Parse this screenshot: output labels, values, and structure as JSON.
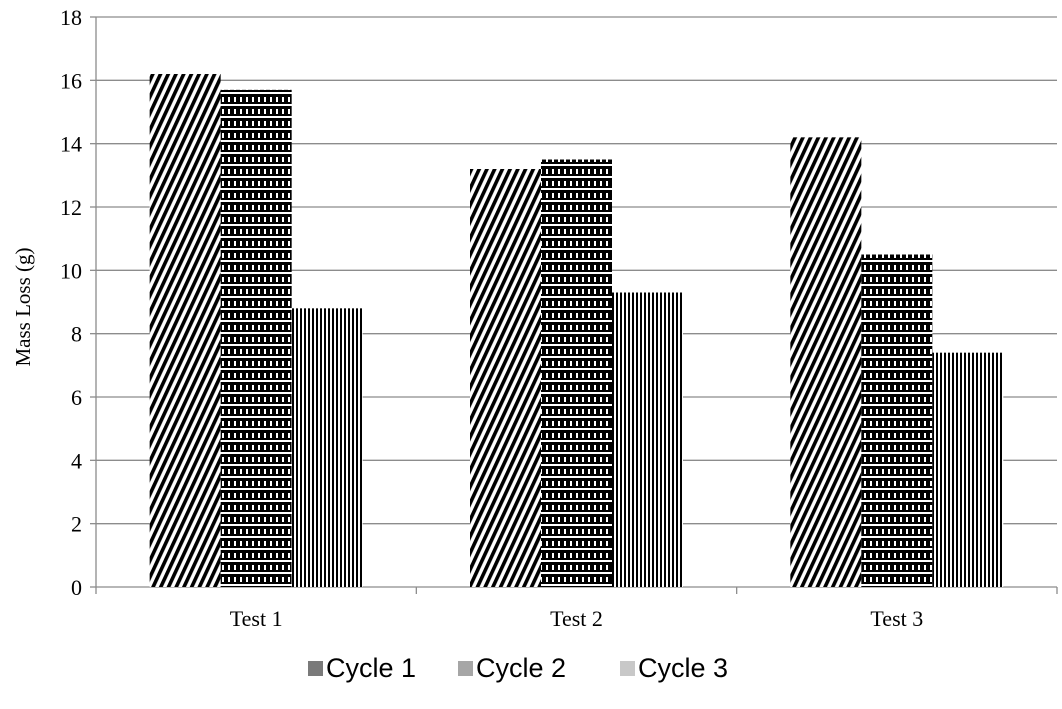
{
  "chart_data": {
    "type": "bar",
    "title": "",
    "xlabel": "",
    "ylabel": "Mass Loss (g)",
    "categories": [
      "Test 1",
      "Test 2",
      "Test 3"
    ],
    "series": [
      {
        "name": "Cycle 1",
        "values": [
          16.2,
          13.2,
          14.2
        ],
        "pattern": "diagonal",
        "swatch_color": "#7a7a7a"
      },
      {
        "name": "Cycle 2",
        "values": [
          15.7,
          13.5,
          10.5
        ],
        "pattern": "horizontal",
        "swatch_color": "#a6a6a6"
      },
      {
        "name": "Cycle 3",
        "values": [
          8.8,
          9.3,
          7.4
        ],
        "pattern": "vertical",
        "swatch_color": "#c8c8c8"
      }
    ],
    "ylim": [
      0,
      18
    ],
    "yticks": [
      0,
      2,
      4,
      6,
      8,
      10,
      12,
      14,
      16,
      18
    ],
    "grid": true,
    "legend_position": "bottom"
  }
}
